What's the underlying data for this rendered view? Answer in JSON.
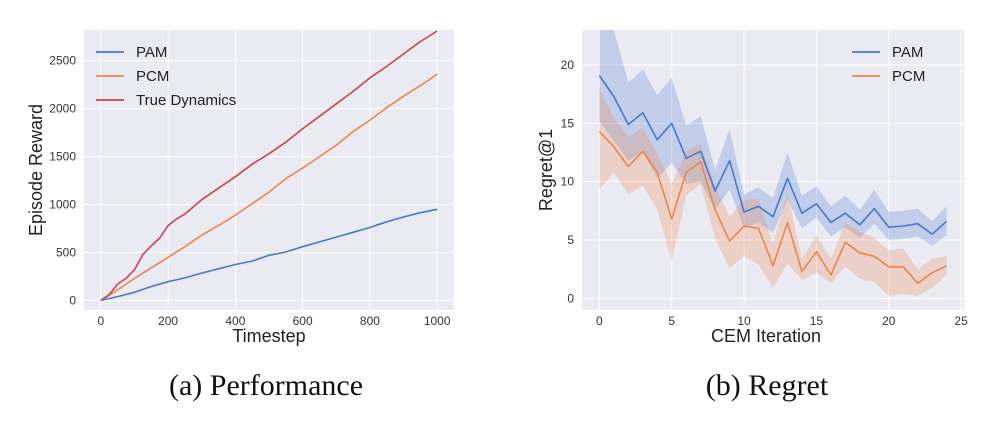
{
  "figure": {
    "captions": [
      "(a) Performance",
      "(b) Regret"
    ]
  },
  "chart_data": [
    {
      "type": "line",
      "xlabel": "Timestep",
      "ylabel": "Episode Reward",
      "xlim": [
        -50,
        1050
      ],
      "ylim": [
        -100,
        2820
      ],
      "xticks": [
        0,
        200,
        400,
        600,
        800,
        1000
      ],
      "yticks": [
        0,
        500,
        1000,
        1500,
        2000,
        2500
      ],
      "grid": true,
      "legend": "top-left",
      "series": [
        {
          "name": "PAM",
          "color": "#4878cf",
          "x": [
            0,
            50,
            100,
            150,
            200,
            250,
            300,
            350,
            400,
            450,
            500,
            550,
            600,
            650,
            700,
            750,
            800,
            850,
            900,
            950,
            1000
          ],
          "y": [
            0,
            40,
            85,
            145,
            195,
            235,
            285,
            330,
            375,
            410,
            470,
            505,
            560,
            610,
            660,
            710,
            760,
            820,
            870,
            915,
            950
          ]
        },
        {
          "name": "PCM",
          "color": "#ee854a",
          "x": [
            0,
            50,
            100,
            150,
            200,
            250,
            300,
            350,
            400,
            450,
            500,
            550,
            600,
            650,
            700,
            750,
            800,
            850,
            900,
            950,
            1000
          ],
          "y": [
            0,
            110,
            230,
            340,
            450,
            560,
            680,
            780,
            890,
            1010,
            1130,
            1270,
            1380,
            1500,
            1620,
            1760,
            1880,
            2010,
            2130,
            2240,
            2360
          ]
        },
        {
          "name": "True Dynamics",
          "color": "#d1414a",
          "x": [
            0,
            25,
            50,
            75,
            100,
            125,
            150,
            175,
            200,
            225,
            250,
            300,
            350,
            400,
            450,
            500,
            550,
            600,
            650,
            700,
            750,
            800,
            850,
            900,
            950,
            1000
          ],
          "y": [
            0,
            60,
            170,
            230,
            320,
            480,
            570,
            650,
            780,
            850,
            900,
            1050,
            1170,
            1290,
            1420,
            1530,
            1650,
            1790,
            1920,
            2050,
            2180,
            2320,
            2440,
            2570,
            2700,
            2810
          ]
        }
      ]
    },
    {
      "type": "line",
      "xlabel": "CEM Iteration",
      "ylabel": "Regret@1",
      "xlim": [
        -1.2,
        25.2
      ],
      "ylim": [
        -1,
        23
      ],
      "xticks": [
        0,
        5,
        10,
        15,
        20,
        25
      ],
      "yticks": [
        0,
        5,
        10,
        15,
        20
      ],
      "grid": true,
      "legend": "top-right",
      "series": [
        {
          "name": "PAM",
          "color": "#4878cf",
          "x": [
            0,
            1,
            2,
            3,
            4,
            5,
            6,
            7,
            8,
            9,
            10,
            11,
            12,
            13,
            14,
            15,
            16,
            17,
            18,
            19,
            20,
            21,
            22,
            23,
            24
          ],
          "y": [
            19.1,
            17.3,
            14.9,
            15.9,
            13.6,
            15.0,
            12.0,
            12.6,
            9.2,
            11.8,
            7.4,
            7.9,
            7.0,
            10.3,
            7.3,
            8.1,
            6.5,
            7.3,
            6.3,
            7.7,
            6.1,
            6.2,
            6.4,
            5.5,
            6.6
          ],
          "band_lower": [
            15.2,
            13.5,
            11.8,
            12.6,
            10.3,
            11.6,
            9.8,
            10.0,
            7.6,
            9.3,
            6.0,
            6.5,
            5.6,
            8.5,
            6.0,
            6.9,
            5.3,
            6.1,
            5.2,
            6.4,
            5.0,
            5.1,
            5.3,
            4.5,
            5.4
          ],
          "band_upper": [
            23.0,
            23.0,
            18.5,
            19.6,
            17.4,
            18.9,
            14.8,
            15.6,
            11.0,
            14.5,
            8.9,
            9.5,
            8.6,
            12.5,
            8.8,
            9.6,
            7.9,
            8.8,
            7.6,
            9.3,
            7.4,
            7.5,
            7.7,
            6.6,
            7.9
          ]
        },
        {
          "name": "PCM",
          "color": "#ee854a",
          "x": [
            0,
            1,
            2,
            3,
            4,
            5,
            6,
            7,
            8,
            9,
            10,
            11,
            12,
            13,
            14,
            15,
            16,
            17,
            18,
            19,
            20,
            21,
            22,
            23,
            24
          ],
          "y": [
            14.3,
            13.0,
            11.3,
            12.6,
            10.8,
            6.8,
            10.8,
            11.7,
            7.6,
            4.9,
            6.2,
            6.0,
            2.8,
            6.5,
            2.3,
            4.0,
            2.0,
            4.8,
            3.9,
            3.6,
            2.7,
            2.7,
            1.3,
            2.2,
            2.8
          ],
          "band_lower": [
            9.3,
            10.8,
            8.9,
            9.7,
            7.6,
            3.2,
            8.8,
            9.8,
            5.1,
            2.6,
            3.6,
            2.9,
            0.9,
            3.0,
            1.6,
            2.2,
            1.3,
            2.7,
            1.7,
            1.4,
            0.2,
            0.4,
            0.2,
            0.9,
            2.0
          ],
          "band_upper": [
            18.0,
            15.5,
            13.8,
            14.6,
            12.4,
            9.8,
            12.6,
            13.2,
            9.6,
            7.0,
            8.5,
            8.5,
            4.7,
            9.0,
            3.4,
            5.4,
            3.4,
            6.5,
            5.7,
            5.2,
            4.1,
            4.3,
            2.5,
            3.4,
            3.6
          ]
        }
      ]
    }
  ]
}
